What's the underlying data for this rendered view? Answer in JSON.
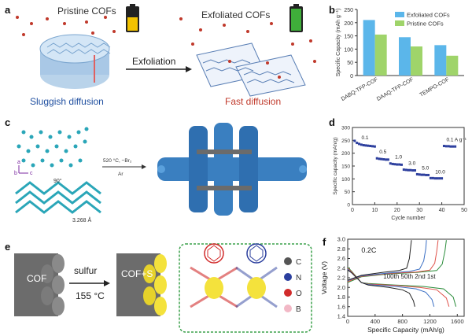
{
  "panels": {
    "a": {
      "letter": "a",
      "pristine_label": "Pristine COFs",
      "exfoliated_label": "Exfoliated COFs",
      "arrow_label": "Exfoliation",
      "sluggish_label": "Sluggish diffusion",
      "fast_label": "Fast diffusion",
      "battery_low_color": "#f2c200",
      "battery_full_color": "#3fae3a",
      "sluggish_color": "#1f4fa0",
      "fast_color": "#c0392b"
    },
    "b": {
      "letter": "b"
    },
    "c": {
      "letter": "c",
      "condition_top": "520 °C, −Br₂",
      "condition_bottom": "Ar",
      "angle_label": "90°",
      "distance_label": "3.268 Å",
      "axis_a": "a",
      "axis_b": "b",
      "axis_c": "c"
    },
    "d": {
      "letter": "d"
    },
    "e": {
      "letter": "e",
      "cof_label": "COF",
      "sulfur_label": "sulfur",
      "temperature_label": "155 °C",
      "cofs_label": "COF+S",
      "legend": [
        {
          "label": "C",
          "color": "#555555"
        },
        {
          "label": "N",
          "color": "#2b3f9e"
        },
        {
          "label": "O",
          "color": "#d12b2b"
        },
        {
          "label": "B",
          "color": "#f2b8c6"
        }
      ]
    },
    "f": {
      "letter": "f"
    }
  },
  "chart_data": [
    {
      "panel": "b",
      "type": "bar",
      "categories": [
        "DABQ-TFP-COF",
        "DAAQ-TFP-COF",
        "TEMPO-COF"
      ],
      "series": [
        {
          "name": "Exfoliated COFs",
          "values": [
            210,
            145,
            115
          ],
          "color": "#5bb6ea"
        },
        {
          "name": "Pristine COFs",
          "values": [
            155,
            110,
            75
          ],
          "color": "#9fd46a"
        }
      ],
      "ylabel": "Specific Capacity (mAh g⁻¹)",
      "ylim": [
        0,
        250
      ],
      "yticks": [
        0,
        50,
        100,
        150,
        200,
        250
      ],
      "legend_position": "top-right"
    },
    {
      "panel": "d",
      "type": "scatter",
      "x": [
        1,
        2,
        3,
        4,
        5,
        6,
        7,
        8,
        9,
        10,
        11,
        12,
        13,
        14,
        15,
        16,
        17,
        18,
        19,
        20,
        21,
        22,
        23,
        24,
        25,
        26,
        27,
        28,
        29,
        30,
        31,
        32,
        33,
        34,
        35,
        36,
        37,
        38,
        39,
        40,
        41,
        42,
        43,
        44,
        45,
        46
      ],
      "y": [
        248,
        240,
        236,
        233,
        231,
        230,
        229,
        228,
        227,
        226,
        180,
        178,
        177,
        176,
        175,
        175,
        160,
        158,
        157,
        156,
        156,
        155,
        136,
        135,
        134,
        134,
        133,
        133,
        118,
        117,
        116,
        116,
        115,
        115,
        103,
        103,
        102,
        102,
        102,
        102,
        228,
        227,
        227,
        226,
        226,
        226
      ],
      "rate_labels": [
        "0.1",
        "0.5",
        "1.0",
        "3.0",
        "5.0",
        "10.0",
        "0.1 A g⁻¹"
      ],
      "xlabel": "Cycle number",
      "ylabel": "Specific capacity (mAh/g)",
      "xlim": [
        0,
        50
      ],
      "ylim": [
        0,
        300
      ],
      "xticks": [
        0,
        10,
        20,
        30,
        40,
        50
      ],
      "yticks": [
        0,
        50,
        100,
        150,
        200,
        250,
        300
      ],
      "color": "#2d3f9e"
    },
    {
      "panel": "f",
      "type": "line",
      "title": "0.2C",
      "xlabel": "Specific Capacity (mAh/g)",
      "ylabel": "Voltage (V)",
      "xlim": [
        0,
        1700
      ],
      "ylim": [
        1.4,
        3.0
      ],
      "xticks": [
        0,
        400,
        800,
        1200,
        1600
      ],
      "yticks": [
        1.4,
        1.6,
        1.8,
        2.0,
        2.2,
        2.4,
        2.6,
        2.8,
        3.0
      ],
      "cycle_labels": "100th 50th 2nd 1st",
      "series": [
        {
          "name": "1st",
          "color": "#2a8c3a",
          "discharge": [
            [
              0,
              2.42
            ],
            [
              60,
              2.33
            ],
            [
              200,
              2.1
            ],
            [
              300,
              2.08
            ],
            [
              700,
              2.05
            ],
            [
              1100,
              2.02
            ],
            [
              1400,
              1.97
            ],
            [
              1540,
              1.8
            ],
            [
              1580,
              1.6
            ]
          ],
          "charge": [
            [
              0,
              2.1
            ],
            [
              200,
              2.22
            ],
            [
              600,
              2.28
            ],
            [
              1000,
              2.31
            ],
            [
              1300,
              2.35
            ],
            [
              1380,
              2.48
            ],
            [
              1420,
              2.75
            ],
            [
              1440,
              2.98
            ]
          ]
        },
        {
          "name": "2nd",
          "color": "#e0524a",
          "discharge": [
            [
              0,
              2.4
            ],
            [
              60,
              2.32
            ],
            [
              200,
              2.1
            ],
            [
              300,
              2.07
            ],
            [
              700,
              2.04
            ],
            [
              1050,
              2.0
            ],
            [
              1300,
              1.95
            ],
            [
              1440,
              1.78
            ],
            [
              1480,
              1.6
            ]
          ],
          "charge": [
            [
              0,
              2.12
            ],
            [
              200,
              2.23
            ],
            [
              600,
              2.29
            ],
            [
              1000,
              2.32
            ],
            [
              1200,
              2.36
            ],
            [
              1270,
              2.5
            ],
            [
              1300,
              2.75
            ],
            [
              1320,
              2.98
            ]
          ]
        },
        {
          "name": "50th",
          "color": "#3a6fc4",
          "discharge": [
            [
              0,
              2.38
            ],
            [
              60,
              2.3
            ],
            [
              200,
              2.1
            ],
            [
              300,
              2.06
            ],
            [
              700,
              2.02
            ],
            [
              1000,
              1.97
            ],
            [
              1140,
              1.9
            ],
            [
              1230,
              1.75
            ],
            [
              1260,
              1.6
            ]
          ],
          "charge": [
            [
              0,
              2.14
            ],
            [
              200,
              2.24
            ],
            [
              600,
              2.3
            ],
            [
              900,
              2.33
            ],
            [
              1050,
              2.38
            ],
            [
              1110,
              2.55
            ],
            [
              1140,
              2.8
            ],
            [
              1150,
              2.98
            ]
          ]
        },
        {
          "name": "100th",
          "color": "#222222",
          "discharge": [
            [
              0,
              2.36
            ],
            [
              60,
              2.3
            ],
            [
              200,
              2.1
            ],
            [
              300,
              2.05
            ],
            [
              600,
              2.0
            ],
            [
              800,
              1.95
            ],
            [
              900,
              1.88
            ],
            [
              960,
              1.72
            ],
            [
              980,
              1.6
            ]
          ],
          "charge": [
            [
              0,
              2.15
            ],
            [
              200,
              2.25
            ],
            [
              500,
              2.31
            ],
            [
              750,
              2.35
            ],
            [
              860,
              2.4
            ],
            [
              900,
              2.6
            ],
            [
              920,
              2.85
            ],
            [
              930,
              2.98
            ]
          ]
        }
      ]
    }
  ]
}
